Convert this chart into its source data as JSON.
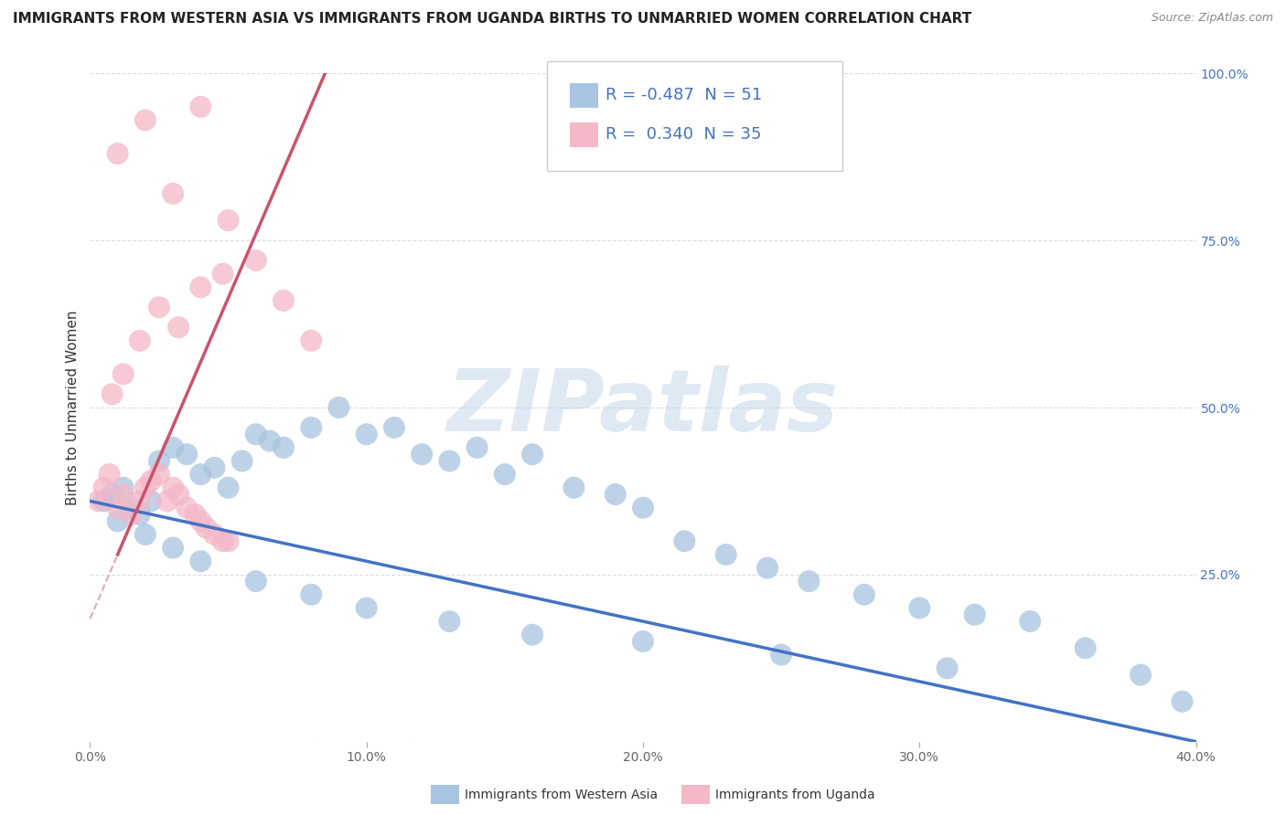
{
  "title": "IMMIGRANTS FROM WESTERN ASIA VS IMMIGRANTS FROM UGANDA BIRTHS TO UNMARRIED WOMEN CORRELATION CHART",
  "source": "Source: ZipAtlas.com",
  "ylabel": "Births to Unmarried Women",
  "xlabel_blue": "Immigrants from Western Asia",
  "xlabel_pink": "Immigrants from Uganda",
  "watermark": "ZIPatlas",
  "R_blue": -0.487,
  "N_blue": 51,
  "R_pink": 0.34,
  "N_pink": 35,
  "xlim": [
    0.0,
    0.4
  ],
  "ylim": [
    0.0,
    1.0
  ],
  "xticks": [
    0.0,
    0.1,
    0.2,
    0.3,
    0.4
  ],
  "xtick_labels": [
    "0.0%",
    "10.0%",
    "20.0%",
    "30.0%",
    "40.0%"
  ],
  "yticks": [
    0.0,
    0.25,
    0.5,
    0.75,
    1.0
  ],
  "ytick_labels_right": [
    "",
    "25.0%",
    "50.0%",
    "75.0%",
    "100.0%"
  ],
  "blue_color": "#a8c4e0",
  "blue_line_color": "#4472c4",
  "pink_color": "#f4b8c8",
  "pink_line_color": "#c9546c",
  "blue_scatter_x": [
    0.005,
    0.008,
    0.012,
    0.015,
    0.018,
    0.022,
    0.025,
    0.03,
    0.035,
    0.04,
    0.045,
    0.05,
    0.055,
    0.06,
    0.065,
    0.07,
    0.08,
    0.09,
    0.1,
    0.11,
    0.12,
    0.13,
    0.14,
    0.15,
    0.16,
    0.175,
    0.19,
    0.2,
    0.215,
    0.23,
    0.245,
    0.26,
    0.28,
    0.3,
    0.32,
    0.34,
    0.36,
    0.38,
    0.395,
    0.01,
    0.02,
    0.03,
    0.04,
    0.06,
    0.08,
    0.1,
    0.13,
    0.16,
    0.2,
    0.25,
    0.31
  ],
  "blue_scatter_y": [
    0.36,
    0.37,
    0.38,
    0.35,
    0.34,
    0.36,
    0.42,
    0.44,
    0.43,
    0.4,
    0.41,
    0.38,
    0.42,
    0.46,
    0.45,
    0.44,
    0.47,
    0.5,
    0.46,
    0.47,
    0.43,
    0.42,
    0.44,
    0.4,
    0.43,
    0.38,
    0.37,
    0.35,
    0.3,
    0.28,
    0.26,
    0.24,
    0.22,
    0.2,
    0.19,
    0.18,
    0.14,
    0.1,
    0.06,
    0.33,
    0.31,
    0.29,
    0.27,
    0.24,
    0.22,
    0.2,
    0.18,
    0.16,
    0.15,
    0.13,
    0.11
  ],
  "pink_scatter_x": [
    0.003,
    0.005,
    0.007,
    0.01,
    0.012,
    0.015,
    0.018,
    0.02,
    0.022,
    0.025,
    0.028,
    0.03,
    0.032,
    0.035,
    0.038,
    0.04,
    0.042,
    0.045,
    0.048,
    0.05,
    0.008,
    0.012,
    0.018,
    0.025,
    0.032,
    0.04,
    0.048,
    0.01,
    0.02,
    0.03,
    0.04,
    0.05,
    0.06,
    0.07,
    0.08
  ],
  "pink_scatter_y": [
    0.36,
    0.38,
    0.4,
    0.35,
    0.37,
    0.34,
    0.36,
    0.38,
    0.39,
    0.4,
    0.36,
    0.38,
    0.37,
    0.35,
    0.34,
    0.33,
    0.32,
    0.31,
    0.3,
    0.3,
    0.52,
    0.55,
    0.6,
    0.65,
    0.62,
    0.68,
    0.7,
    0.88,
    0.93,
    0.82,
    0.95,
    0.78,
    0.72,
    0.66,
    0.6
  ],
  "blue_trend_x": [
    0.0,
    0.4
  ],
  "blue_trend_y": [
    0.36,
    0.0
  ],
  "pink_trend_x": [
    0.01,
    0.085
  ],
  "pink_trend_y": [
    0.28,
    1.0
  ],
  "background_color": "#ffffff",
  "grid_color": "#dddddd",
  "title_fontsize": 11,
  "axis_label_fontsize": 11,
  "tick_fontsize": 10,
  "legend_fontsize": 13
}
